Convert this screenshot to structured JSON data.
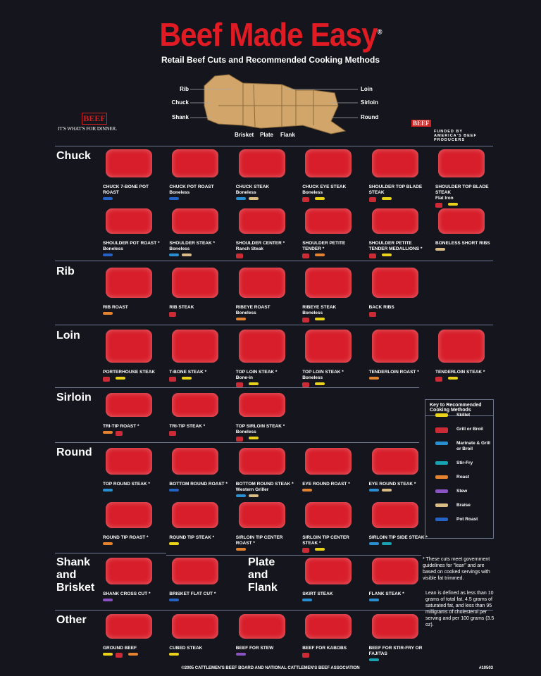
{
  "header": {
    "title": "Beef Made Easy",
    "registered": "®",
    "subtitle": "Retail Beef Cuts and Recommended Cooking Methods"
  },
  "diagram": {
    "left": [
      "Rib",
      "Chuck",
      "Shank"
    ],
    "bottom": [
      "Brisket",
      "Plate",
      "Flank"
    ],
    "right": [
      "Loin",
      "Sirloin",
      "Round"
    ]
  },
  "logo_left": {
    "brand": "BEEF",
    "slogan": "IT'S WHAT'S FOR DINNER."
  },
  "logo_right": {
    "brand": "BEEF",
    "funded": "FUNDED BY AMERICA'S BEEF PRODUCERS"
  },
  "sections": [
    {
      "label": "Chuck",
      "rows": [
        [
          {
            "name": "CHUCK 7-BONE POT ROAST",
            "methods": [
              "Pot Roast"
            ]
          },
          {
            "name": "CHUCK POT ROAST",
            "sub": "Boneless",
            "methods": [
              "Pot Roast"
            ]
          },
          {
            "name": "CHUCK STEAK",
            "sub": "Boneless",
            "methods": [
              "Marinate & Grill or Broil",
              "Braise"
            ]
          },
          {
            "name": "CHUCK EYE STEAK",
            "sub": "Boneless",
            "methods": [
              "Grill or Broil",
              "Skillet"
            ]
          },
          {
            "name": "SHOULDER TOP BLADE STEAK",
            "methods": [
              "Grill or Broil",
              "Skillet"
            ]
          },
          {
            "name": "SHOULDER TOP BLADE STEAK",
            "sub": "Flat Iron",
            "methods": [
              "Grill or Broil",
              "Skillet"
            ]
          }
        ],
        [
          {
            "name": "SHOULDER POT ROAST *",
            "sub": "Boneless",
            "methods": [
              "Pot Roast"
            ]
          },
          {
            "name": "SHOULDER STEAK *",
            "sub": "Boneless",
            "methods": [
              "Marinate & Grill or Broil",
              "Braise"
            ]
          },
          {
            "name": "SHOULDER CENTER *",
            "sub": "Ranch Steak",
            "methods": [
              "Grill or Broil"
            ]
          },
          {
            "name": "SHOULDER PETITE TENDER *",
            "methods": [
              "Grill or Broil",
              "Roast"
            ]
          },
          {
            "name": "SHOULDER PETITE TENDER MEDALLIONS *",
            "methods": [
              "Grill or Broil",
              "Skillet"
            ]
          },
          {
            "name": "BONELESS SHORT RIBS",
            "methods": [
              "Braise"
            ]
          }
        ]
      ]
    },
    {
      "label": "Rib",
      "rows": [
        [
          {
            "name": "RIB ROAST",
            "methods": [
              "Roast"
            ]
          },
          {
            "name": "RIB STEAK",
            "methods": [
              "Grill or Broil"
            ]
          },
          {
            "name": "RIBEYE ROAST",
            "sub": "Boneless",
            "methods": [
              "Roast"
            ]
          },
          {
            "name": "RIBEYE STEAK",
            "sub": "Boneless",
            "methods": [
              "Grill or Broil",
              "Skillet"
            ]
          },
          {
            "name": "BACK RIBS",
            "methods": [
              "Grill or Broil"
            ]
          }
        ]
      ]
    },
    {
      "label": "Loin",
      "rows": [
        [
          {
            "name": "PORTERHOUSE STEAK",
            "methods": [
              "Grill or Broil",
              "Skillet"
            ]
          },
          {
            "name": "T-BONE STEAK *",
            "methods": [
              "Grill or Broil",
              "Skillet"
            ]
          },
          {
            "name": "TOP LOIN STEAK *",
            "sub": "Bone-in",
            "methods": [
              "Grill or Broil",
              "Skillet"
            ]
          },
          {
            "name": "TOP LOIN STEAK *",
            "sub": "Boneless",
            "methods": [
              "Grill or Broil",
              "Skillet"
            ]
          },
          {
            "name": "TENDERLOIN ROAST *",
            "methods": [
              "Roast"
            ]
          },
          {
            "name": "TENDERLOIN STEAK *",
            "methods": [
              "Grill or Broil",
              "Skillet"
            ]
          }
        ]
      ]
    },
    {
      "label": "Sirloin",
      "rows": [
        [
          {
            "name": "TRI-TIP ROAST *",
            "methods": [
              "Roast",
              "Grill or Broil"
            ]
          },
          {
            "name": "TRI-TIP STEAK *",
            "methods": [
              "Grill or Broil"
            ]
          },
          {
            "name": "TOP SIRLOIN STEAK *",
            "sub": "Boneless",
            "methods": [
              "Grill or Broil",
              "Skillet"
            ]
          }
        ]
      ]
    },
    {
      "label": "Round",
      "rows": [
        [
          {
            "name": "TOP ROUND STEAK *",
            "methods": [
              "Marinate & Grill or Broil"
            ]
          },
          {
            "name": "BOTTOM ROUND ROAST *",
            "methods": [
              "Pot Roast"
            ]
          },
          {
            "name": "BOTTOM ROUND STEAK *",
            "sub": "Western Griller",
            "methods": [
              "Marinate & Grill or Broil",
              "Braise"
            ]
          },
          {
            "name": "EYE ROUND ROAST *",
            "methods": [
              "Roast"
            ]
          },
          {
            "name": "EYE ROUND STEAK *",
            "methods": [
              "Marinate & Grill or Broil",
              "Braise"
            ]
          }
        ],
        [
          {
            "name": "ROUND TIP ROAST *",
            "methods": [
              "Roast"
            ]
          },
          {
            "name": "ROUND TIP STEAK *",
            "methods": [
              "Skillet"
            ]
          },
          {
            "name": "SIRLOIN TIP CENTER ROAST *",
            "methods": [
              "Roast"
            ]
          },
          {
            "name": "SIRLOIN TIP CENTER STEAK *",
            "methods": [
              "Grill or Broil",
              "Skillet"
            ]
          },
          {
            "name": "SIRLOIN TIP SIDE STEAK *",
            "methods": [
              "Marinate & Grill or Broil",
              "Stir-Fry"
            ]
          }
        ]
      ]
    },
    {
      "label": "Shank and Brisket",
      "rows": [
        [
          {
            "name": "SHANK CROSS CUT *",
            "methods": [
              "Stew"
            ]
          },
          {
            "name": "BRISKET FLAT CUT *",
            "methods": [
              "Pot Roast"
            ]
          }
        ]
      ]
    },
    {
      "label": "Plate and Flank",
      "rows": [
        [
          {
            "name": "SKIRT STEAK",
            "methods": [
              "Marinate & Grill or Broil"
            ]
          },
          {
            "name": "FLANK STEAK *",
            "methods": [
              "Marinate & Grill or Broil"
            ]
          }
        ]
      ]
    },
    {
      "label": "Other",
      "rows": [
        [
          {
            "name": "GROUND BEEF",
            "methods": [
              "Skillet",
              "Grill or Broil",
              "Roast"
            ]
          },
          {
            "name": "CUBED STEAK",
            "methods": [
              "Skillet"
            ]
          },
          {
            "name": "BEEF FOR STEW",
            "methods": [
              "Stew"
            ]
          },
          {
            "name": "BEEF FOR KABOBS",
            "methods": [
              "Grill or Broil"
            ]
          },
          {
            "name": "BEEF FOR STIR-FRY OR FAJITAS",
            "methods": [
              "Stir-Fry"
            ]
          }
        ]
      ]
    }
  ],
  "key": {
    "title": "Key to Recommended Cooking Methods",
    "items": [
      {
        "label": "Skillet",
        "color": "#e8d21a"
      },
      {
        "label": "Grill or Broil",
        "color": "#cc2b36"
      },
      {
        "label": "Marinate & Grill or Broil",
        "color": "#2a8fd0"
      },
      {
        "label": "Stir-Fry",
        "color": "#18a3b3"
      },
      {
        "label": "Roast",
        "color": "#e3822f"
      },
      {
        "label": "Stew",
        "color": "#8b52c4"
      },
      {
        "label": "Braise",
        "color": "#d9bb85"
      },
      {
        "label": "Pot Roast",
        "color": "#2462c4"
      }
    ]
  },
  "notes": [
    "* These cuts meet government guidelines for \"lean\" and are based on cooked servings with visible fat trimmed.",
    "Lean is defined as less than 10 grams of total fat, 4.5 grams of saturated fat, and less than 95 milligrams of cholesterol per serving and per 100 grams (3.5 oz)."
  ],
  "footer": {
    "copyright": "©2005 CATTLEMEN'S BEEF BOARD AND NATIONAL CATTLEMEN'S BEEF ASSOCIATION",
    "code": "#10503"
  }
}
